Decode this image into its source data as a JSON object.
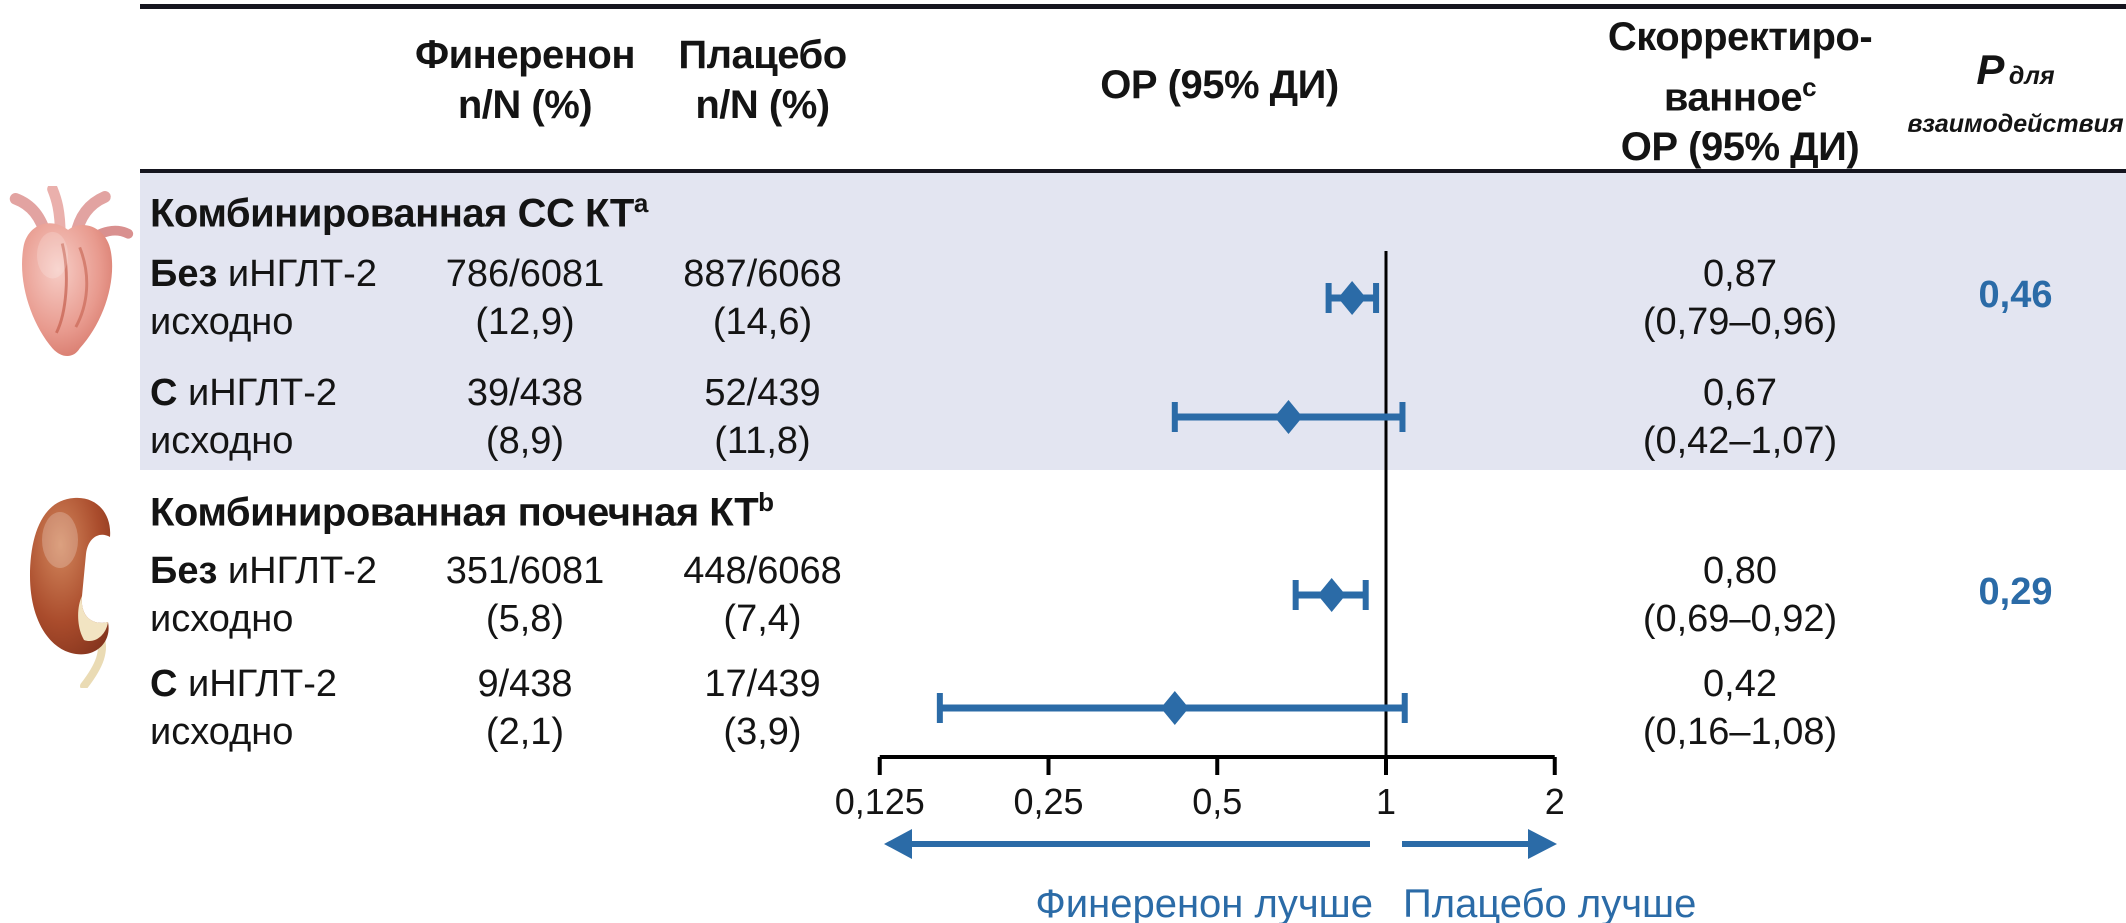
{
  "colors": {
    "accent": "#2b6ba7",
    "band": "#e3e5f1",
    "rule": "#15151f",
    "text": "#141414"
  },
  "header": {
    "finerenone_line1": "Финеренон",
    "finerenone_line2": "n/N (%)",
    "placebo_line1": "Плацебо",
    "placebo_line2": "n/N (%)",
    "or_col": "ОР (95% ДИ)",
    "adj_line1": "Скорректиро-",
    "adj_line2": "ванное",
    "adj_sup": "c",
    "adj_line3": "ОР (95% ДИ)",
    "p_symbol": "P",
    "p_sub1": "для",
    "p_sub2": "взаимодействия"
  },
  "sections": [
    {
      "title": "Комбинированная СС КТ",
      "sup": "a",
      "icon": "heart",
      "rows": [
        {
          "label_b": "Без",
          "label_r": " иНГЛТ-2",
          "label2": "исходно",
          "fin1": "786/6081",
          "fin2": "(12,9)",
          "pla1": "887/6068",
          "pla2": "(14,6)",
          "adj1": "0,87",
          "adj2": "(0,79–0,96)",
          "p": "0,46"
        },
        {
          "label_b": "С",
          "label_r": " иНГЛТ-2",
          "label2": "исходно",
          "fin1": "39/438",
          "fin2": "(8,9)",
          "pla1": "52/439",
          "pla2": "(11,8)",
          "adj1": "0,67",
          "adj2": "(0,42–1,07)",
          "p": ""
        }
      ]
    },
    {
      "title": "Комбинированная почечная КТ",
      "sup": "b",
      "icon": "kidney",
      "rows": [
        {
          "label_b": "Без",
          "label_r": " иНГЛТ-2",
          "label2": "исходно",
          "fin1": "351/6081",
          "fin2": "(5,8)",
          "pla1": "448/6068",
          "pla2": "(7,4)",
          "adj1": "0,80",
          "adj2": "(0,69–0,92)",
          "p": "0,29"
        },
        {
          "label_b": "С",
          "label_r": " иНГЛТ-2",
          "label2": "исходно",
          "fin1": "9/438",
          "fin2": "(2,1)",
          "pla1": "17/439",
          "pla2": "(3,9)",
          "adj1": "0,42",
          "adj2": "(0,16–1,08)",
          "p": ""
        }
      ]
    }
  ],
  "footer": {
    "better_left": "Финеренон лучше",
    "better_right": "Плацебо лучше"
  },
  "chart_data": {
    "type": "scatter",
    "subtype": "forest-plot",
    "x_scale": "log",
    "x_ticks": [
      0.125,
      0.25,
      0.5,
      1,
      2
    ],
    "x_tick_labels": [
      "0,125",
      "0,25",
      "0,5",
      "1",
      "2"
    ],
    "reference_line": 1,
    "legend_position": "none",
    "grid": false,
    "series": [
      {
        "name": "Комбинированная СС КТ",
        "p_interaction": "0,46",
        "points": [
          {
            "label": "Без иНГЛТ-2 исходно",
            "hr": 0.87,
            "ci": [
              0.79,
              0.96
            ],
            "finerenone_nN": "786/6081",
            "finerenone_pct": 12.9,
            "placebo_nN": "887/6068",
            "placebo_pct": 14.6,
            "adjusted_or": "0,87 (0,79–0,96)"
          },
          {
            "label": "С иНГЛТ-2 исходно",
            "hr": 0.67,
            "ci": [
              0.42,
              1.07
            ],
            "finerenone_nN": "39/438",
            "finerenone_pct": 8.9,
            "placebo_nN": "52/439",
            "placebo_pct": 11.8,
            "adjusted_or": "0,67 (0,42–1,07)"
          }
        ]
      },
      {
        "name": "Комбинированная почечная КТ",
        "p_interaction": "0,29",
        "points": [
          {
            "label": "Без иНГЛТ-2 исходно",
            "hr": 0.8,
            "ci": [
              0.69,
              0.92
            ],
            "finerenone_nN": "351/6081",
            "finerenone_pct": 5.8,
            "placebo_nN": "448/6068",
            "placebo_pct": 7.4,
            "adjusted_or": "0,80 (0,69–0,92)"
          },
          {
            "label": "С иНГЛТ-2 исходно",
            "hr": 0.42,
            "ci": [
              0.16,
              1.08
            ],
            "finerenone_nN": "9/438",
            "finerenone_pct": 2.1,
            "placebo_nN": "17/439",
            "placebo_pct": 3.9,
            "adjusted_or": "0,42 (0,16–1,08)"
          }
        ]
      }
    ],
    "annotations": {
      "left_arrow": "Финеренон лучше",
      "right_arrow": "Плацебо лучше"
    },
    "title": "",
    "xlabel": "ОР (95% ДИ)",
    "ylabel": ""
  }
}
